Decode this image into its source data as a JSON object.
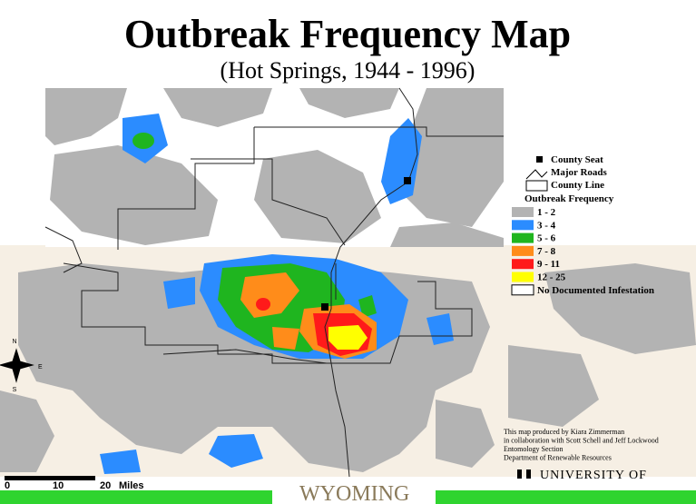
{
  "header": {
    "title": "Outbreak Frequency Map",
    "subtitle": "(Hot Springs, 1944 - 1996)"
  },
  "legend": {
    "symbols": [
      "County Seat",
      "Major Roads",
      "County Line"
    ],
    "heading": "Outbreak Frequency",
    "classes": [
      {
        "label": "1 - 2",
        "color": "#b3b3b3"
      },
      {
        "label": "3 - 4",
        "color": "#2b8cff"
      },
      {
        "label": "5 - 6",
        "color": "#1fb51f"
      },
      {
        "label": "7 - 8",
        "color": "#ff8c1a"
      },
      {
        "label": "9 - 11",
        "color": "#ff1a1a"
      },
      {
        "label": "12 - 25",
        "color": "#ffff00"
      },
      {
        "label": "No Documented Infestation",
        "color": "#ffffff"
      }
    ]
  },
  "credits": [
    "This map produced by Kiara Zimmerman",
    "in collaboration with Scott Schell and Jeff Lockwood",
    "Entomology Section",
    "Department of Renewable Resources"
  ],
  "scale": {
    "ticks": [
      "0",
      "10",
      "20"
    ],
    "unit": "Miles"
  },
  "compass": {
    "north": "N",
    "east": "E",
    "south": "S"
  },
  "footer": {
    "university": "UNIVERSITY OF",
    "state": "WYOMING"
  }
}
